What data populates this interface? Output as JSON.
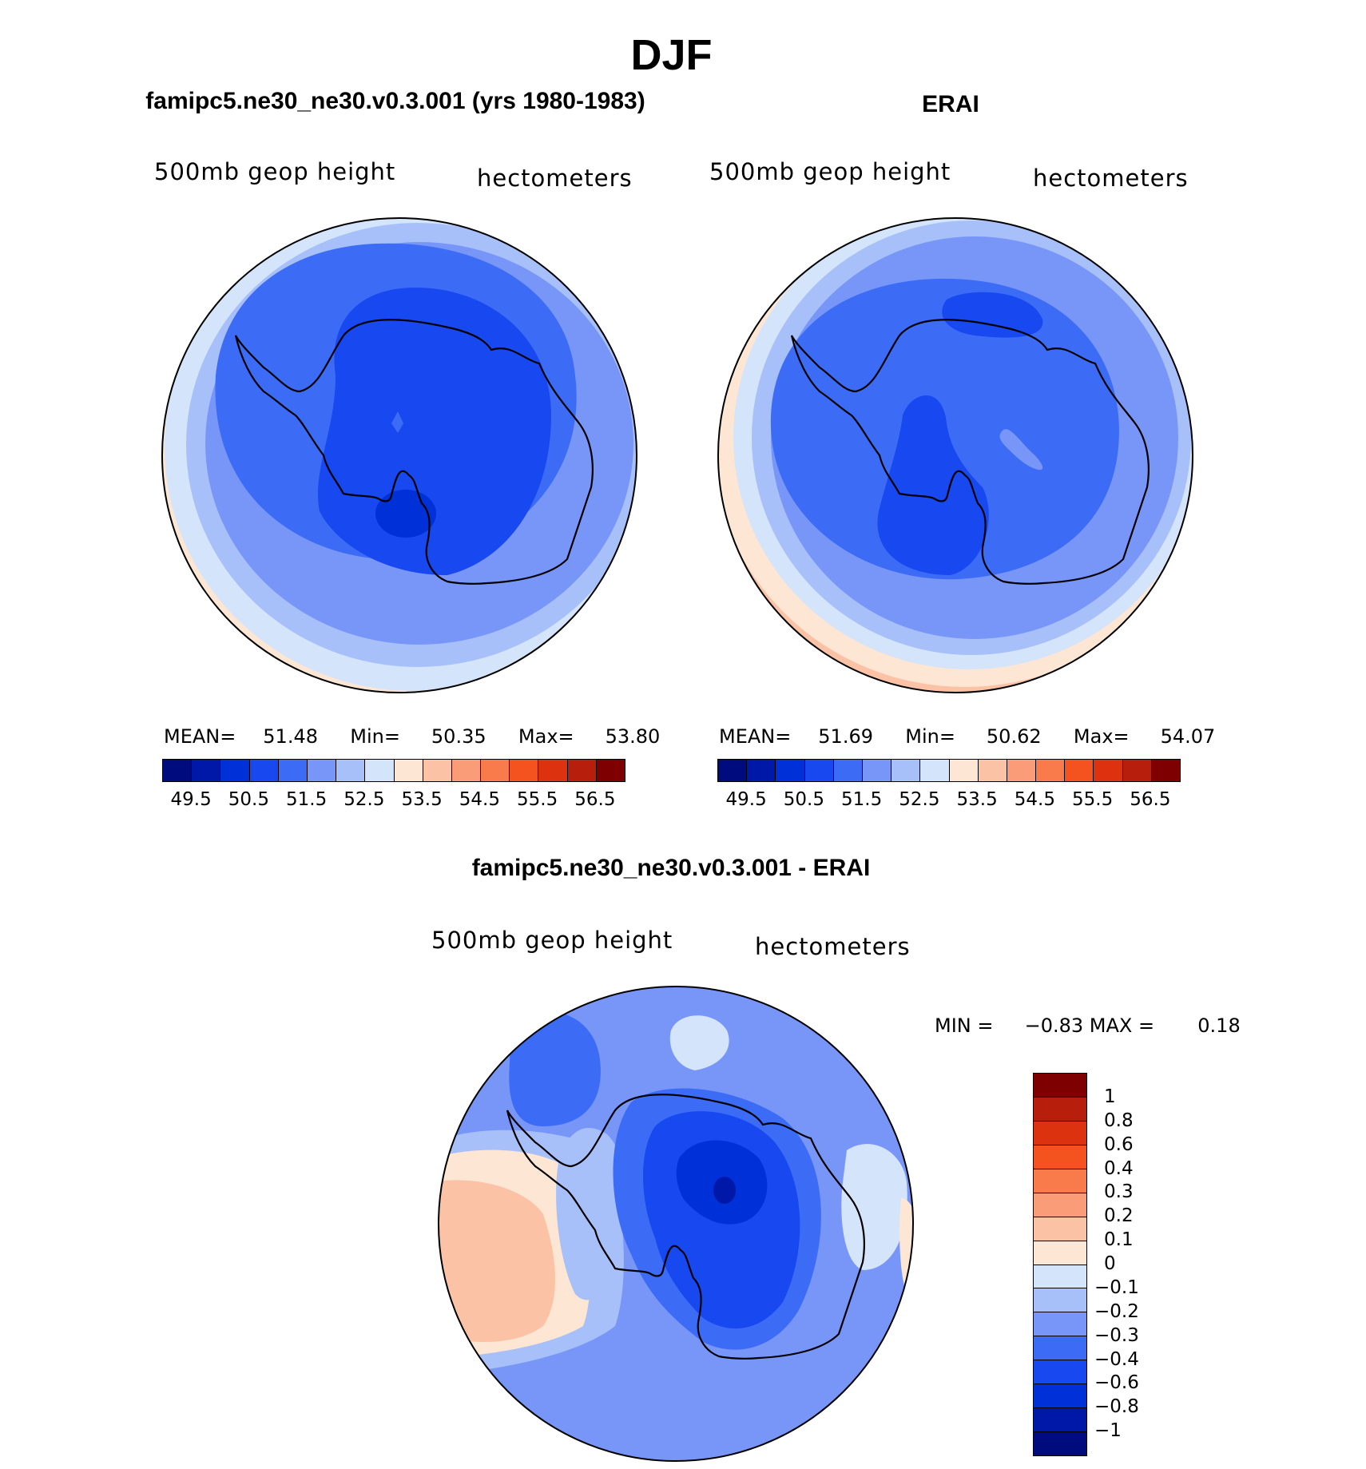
{
  "figure": {
    "title": "DJF",
    "variable": "500mb geop height",
    "units": "hectometers"
  },
  "panels": {
    "model": {
      "title": "famipc5.ne30_ne30.v0.3.001 (yrs 1980-1983)",
      "mean_label": "MEAN=",
      "mean": "51.48",
      "min_label": "Min=",
      "min": "50.35",
      "max_label": "Max=",
      "max": "53.80"
    },
    "obs": {
      "title": "ERAI",
      "mean_label": "MEAN=",
      "mean": "51.69",
      "min_label": "Min=",
      "min": "50.62",
      "max_label": "Max=",
      "max": "54.07"
    },
    "diff": {
      "title": "famipc5.ne30_ne30.v0.3.001 - ERAI",
      "min_label": "MIN =",
      "min": "−0.83",
      "max_label": "MAX =",
      "max": "0.18"
    }
  },
  "colorbars": {
    "main": {
      "colors": [
        "#000c7e",
        "#0018a8",
        "#0030d8",
        "#1848f0",
        "#3c6cf6",
        "#7896f8",
        "#a8c0fa",
        "#d4e4fa",
        "#fde6d4",
        "#fcc2a6",
        "#fb9c78",
        "#f97a4a",
        "#f4521e",
        "#dc3210",
        "#b81e0c",
        "#7e0000"
      ],
      "tick_labels": [
        "49.5",
        "50.5",
        "51.5",
        "52.5",
        "53.5",
        "54.5",
        "55.5",
        "56.5"
      ]
    },
    "diff": {
      "colors_top_to_bottom": [
        "#7e0000",
        "#b81e0c",
        "#dc3210",
        "#f4521e",
        "#f97a4a",
        "#fb9c78",
        "#fcc2a6",
        "#fde6d4",
        "#d4e4fa",
        "#a8c0fa",
        "#7896f8",
        "#3c6cf6",
        "#1848f0",
        "#0030d8",
        "#0018a8",
        "#000c7e"
      ],
      "tick_labels": [
        "1",
        "0.8",
        "0.6",
        "0.4",
        "0.3",
        "0.2",
        "0.1",
        "0",
        "−0.1",
        "−0.2",
        "−0.3",
        "−0.4",
        "−0.6",
        "−0.8",
        "−1"
      ]
    }
  }
}
